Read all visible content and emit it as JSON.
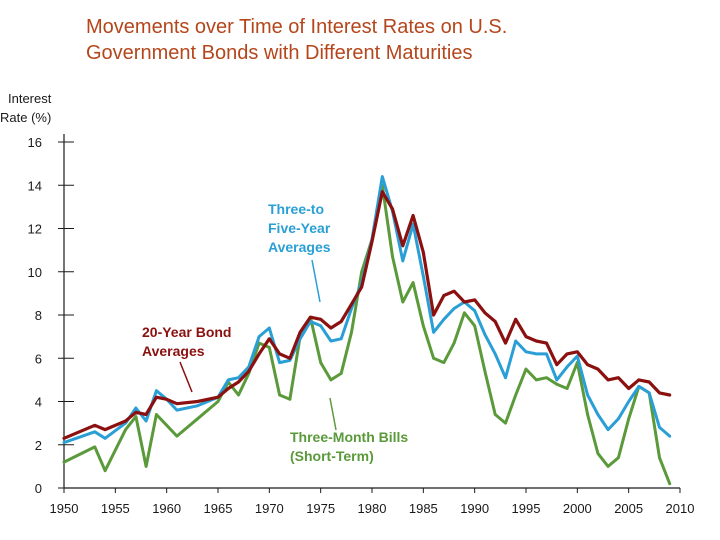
{
  "title": {
    "line1": "Movements over Time of Interest Rates on U.S.",
    "line2": "Government Bonds with Different Maturities"
  },
  "colors": {
    "title": "#b5461b",
    "long": "#8b1010",
    "mid": "#2a9fd6",
    "short": "#5a9a3a",
    "axis": "#1a1a1a"
  },
  "chart_data": {
    "type": "line",
    "ylabel_line1": "Interest",
    "ylabel_line2": "Rate (%)",
    "xlim": [
      1950,
      2010
    ],
    "ylim": [
      0,
      16
    ],
    "xticks": [
      "1950",
      "1955",
      "1960",
      "1965",
      "1970",
      "1975",
      "1980",
      "1985",
      "1990",
      "1995",
      "2000",
      "2005",
      "2010"
    ],
    "yticks": [
      "0",
      "2",
      "4",
      "6",
      "8",
      "10",
      "12",
      "14",
      "16"
    ],
    "annotations": {
      "mid": [
        "Three-to",
        "Five-Year",
        "Averages"
      ],
      "long": [
        "20-Year Bond",
        "Averages"
      ],
      "short": [
        "Three-Month Bills",
        "(Short-Term)"
      ]
    },
    "series": [
      {
        "name": "20-Year Bond Averages",
        "key": "long",
        "x": [
          1950,
          1953,
          1954,
          1956,
          1957,
          1958,
          1959,
          1960,
          1961,
          1963,
          1965,
          1966,
          1967,
          1968,
          1969,
          1970,
          1971,
          1972,
          1973,
          1974,
          1975,
          1976,
          1977,
          1978,
          1979,
          1980,
          1981,
          1982,
          1983,
          1984,
          1985,
          1986,
          1987,
          1988,
          1989,
          1990,
          1991,
          1992,
          1993,
          1994,
          1995,
          1996,
          1997,
          1998,
          1999,
          2000,
          2001,
          2002,
          2003,
          2004,
          2005,
          2006,
          2007,
          2008,
          2009
        ],
        "values": [
          2.3,
          2.9,
          2.7,
          3.1,
          3.5,
          3.4,
          4.2,
          4.1,
          3.9,
          4.0,
          4.2,
          4.6,
          4.9,
          5.4,
          6.2,
          6.9,
          6.2,
          6.0,
          7.2,
          7.9,
          7.8,
          7.4,
          7.7,
          8.5,
          9.3,
          11.4,
          13.7,
          12.9,
          11.2,
          12.6,
          10.9,
          8.0,
          8.9,
          9.1,
          8.6,
          8.7,
          8.1,
          7.7,
          6.7,
          7.8,
          7.0,
          6.8,
          6.7,
          5.7,
          6.2,
          6.3,
          5.7,
          5.5,
          5.0,
          5.1,
          4.6,
          5.0,
          4.9,
          4.4,
          4.3
        ]
      },
      {
        "name": "Three-to Five-Year Averages",
        "key": "mid",
        "x": [
          1950,
          1953,
          1954,
          1956,
          1957,
          1958,
          1959,
          1960,
          1961,
          1963,
          1965,
          1966,
          1967,
          1968,
          1969,
          1970,
          1971,
          1972,
          1973,
          1974,
          1975,
          1976,
          1977,
          1978,
          1979,
          1980,
          1981,
          1982,
          1983,
          1984,
          1985,
          1986,
          1987,
          1988,
          1989,
          1990,
          1991,
          1992,
          1993,
          1994,
          1995,
          1996,
          1997,
          1998,
          1999,
          2000,
          2001,
          2002,
          2003,
          2004,
          2005,
          2006,
          2007,
          2008,
          2009
        ],
        "values": [
          2.1,
          2.6,
          2.3,
          3.0,
          3.7,
          3.1,
          4.5,
          4.1,
          3.6,
          3.8,
          4.2,
          5.0,
          5.1,
          5.6,
          7.0,
          7.4,
          5.8,
          5.9,
          6.9,
          7.7,
          7.5,
          6.8,
          6.9,
          8.3,
          9.5,
          11.5,
          14.4,
          12.8,
          10.5,
          12.2,
          9.8,
          7.2,
          7.8,
          8.3,
          8.6,
          8.2,
          7.1,
          6.2,
          5.1,
          6.8,
          6.3,
          6.2,
          6.2,
          5.0,
          5.6,
          6.1,
          4.3,
          3.4,
          2.7,
          3.2,
          4.0,
          4.7,
          4.4,
          2.8,
          2.4
        ]
      },
      {
        "name": "Three-Month Bills (Short-Term)",
        "key": "short",
        "x": [
          1950,
          1953,
          1954,
          1956,
          1957,
          1958,
          1959,
          1960,
          1961,
          1963,
          1965,
          1966,
          1967,
          1968,
          1969,
          1970,
          1971,
          1972,
          1973,
          1974,
          1975,
          1976,
          1977,
          1978,
          1979,
          1980,
          1981,
          1982,
          1983,
          1984,
          1985,
          1986,
          1987,
          1988,
          1989,
          1990,
          1991,
          1992,
          1993,
          1994,
          1995,
          1996,
          1997,
          1998,
          1999,
          2000,
          2001,
          2002,
          2003,
          2004,
          2005,
          2006,
          2007,
          2008,
          2009
        ],
        "values": [
          1.2,
          1.9,
          0.8,
          2.7,
          3.3,
          1.0,
          3.4,
          2.9,
          2.4,
          3.2,
          4.0,
          4.9,
          4.3,
          5.3,
          6.7,
          6.5,
          4.3,
          4.1,
          7.0,
          7.9,
          5.8,
          5.0,
          5.3,
          7.2,
          10.0,
          11.5,
          14.0,
          10.7,
          8.6,
          9.5,
          7.5,
          6.0,
          5.8,
          6.7,
          8.1,
          7.5,
          5.4,
          3.4,
          3.0,
          4.3,
          5.5,
          5.0,
          5.1,
          4.8,
          4.6,
          5.8,
          3.4,
          1.6,
          1.0,
          1.4,
          3.2,
          4.7,
          4.4,
          1.4,
          0.2
        ]
      }
    ]
  }
}
